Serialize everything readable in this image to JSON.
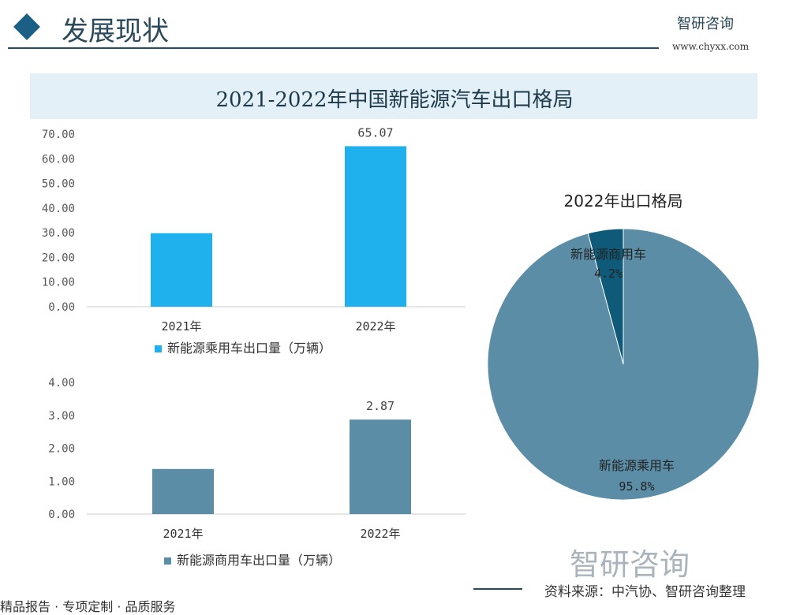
{
  "header": {
    "title": "发展现状",
    "brand": "智研咨询",
    "url": "www.chyxx.com"
  },
  "chart_data": [
    {
      "type": "bar",
      "title": "2021-2022年中国新能源汽车出口格局",
      "categories": [
        "2021年",
        "2022年"
      ],
      "series": [
        {
          "name": "新能源乘用车出口量（万辆）",
          "values": [
            29.8,
            65.07
          ]
        }
      ],
      "data_labels": [
        "",
        "65.07"
      ],
      "yticks": [
        "0.00",
        "10.00",
        "20.00",
        "30.00",
        "40.00",
        "50.00",
        "60.00",
        "70.00"
      ],
      "ylim": [
        0,
        70
      ],
      "color": "#1fb0ee",
      "legend": "bottom"
    },
    {
      "type": "bar",
      "categories": [
        "2021年",
        "2022年"
      ],
      "series": [
        {
          "name": "新能源商用车出口量（万辆）",
          "values": [
            1.37,
            2.87
          ]
        }
      ],
      "data_labels": [
        "",
        "2.87"
      ],
      "yticks": [
        "0.00",
        "1.00",
        "2.00",
        "3.00",
        "4.00"
      ],
      "ylim": [
        0,
        4
      ],
      "color": "#5b8ea6",
      "legend": "bottom"
    },
    {
      "type": "pie",
      "title": "2022年出口格局",
      "slices": [
        {
          "label": "新能源商用车",
          "value": 4.2,
          "pct": "4.2%",
          "color": "#0f5a78"
        },
        {
          "label": "新能源乘用车",
          "value": 95.8,
          "pct": "95.8%",
          "color": "#5b8ea6"
        }
      ]
    }
  ],
  "footer": {
    "left": "精品报告 · 专项定制 · 品质服务",
    "source": "资料来源：中汽协、智研咨询整理",
    "watermark": "智研咨询"
  }
}
